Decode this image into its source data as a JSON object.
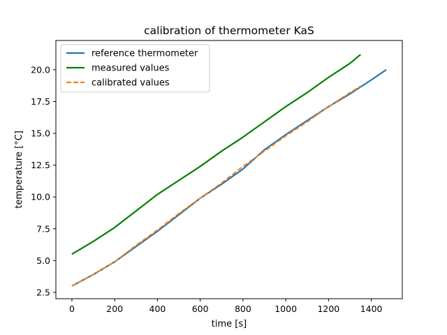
{
  "chart_data": {
    "type": "line",
    "title": "calibration of thermometer KaS",
    "xlabel": "time [s]",
    "ylabel": "temperature [°C]",
    "xlim": [
      -75,
      1545
    ],
    "ylim": [
      2.0,
      22.3
    ],
    "xticks": [
      0,
      200,
      400,
      600,
      800,
      1000,
      1200,
      1400
    ],
    "yticks": [
      2.5,
      5.0,
      7.5,
      10.0,
      12.5,
      15.0,
      17.5,
      20.0
    ],
    "xtick_labels": [
      "0",
      "200",
      "400",
      "600",
      "800",
      "1000",
      "1200",
      "1400"
    ],
    "ytick_labels": [
      "2.5",
      "5.0",
      "7.5",
      "10.0",
      "12.5",
      "15.0",
      "17.5",
      "20.0"
    ],
    "grid": false,
    "legend": "top-left",
    "series": [
      {
        "name": "reference thermometer",
        "color": "#1f77b4",
        "style": "solid",
        "x": [
          0,
          100,
          200,
          300,
          400,
          500,
          600,
          700,
          800,
          900,
          1000,
          1100,
          1200,
          1300,
          1400,
          1470
        ],
        "y": [
          3.0,
          3.9,
          4.9,
          6.1,
          7.3,
          8.6,
          9.9,
          11.0,
          12.2,
          13.7,
          14.9,
          16.0,
          17.1,
          18.1,
          19.2,
          20.0
        ]
      },
      {
        "name": "measured values",
        "color": "#008000",
        "style": "solid",
        "x": [
          0,
          100,
          200,
          300,
          400,
          500,
          600,
          700,
          800,
          900,
          1000,
          1100,
          1200,
          1300,
          1350
        ],
        "y": [
          5.5,
          6.5,
          7.6,
          8.9,
          10.2,
          11.3,
          12.4,
          13.6,
          14.7,
          15.9,
          17.1,
          18.2,
          19.4,
          20.5,
          21.2
        ]
      },
      {
        "name": "calibrated values",
        "color": "#ff7f0e",
        "style": "dashed",
        "x": [
          0,
          100,
          200,
          300,
          400,
          500,
          600,
          700,
          800,
          900,
          1000,
          1100,
          1200,
          1300,
          1350
        ],
        "y": [
          3.0,
          3.9,
          4.9,
          6.2,
          7.4,
          8.7,
          9.9,
          11.1,
          12.4,
          13.6,
          14.8,
          15.9,
          17.1,
          18.2,
          18.7
        ]
      }
    ]
  }
}
